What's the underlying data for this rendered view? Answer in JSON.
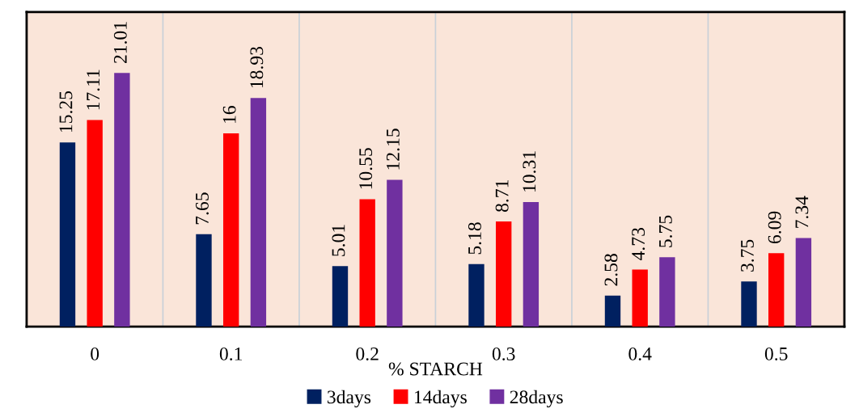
{
  "chart_data": {
    "type": "bar",
    "xlabel": "% STARCH",
    "categories": [
      "0",
      "0.1",
      "0.2",
      "0.3",
      "0.4",
      "0.5"
    ],
    "series": [
      {
        "name": "3days",
        "color": "#002060",
        "values": [
          15.25,
          7.65,
          5.01,
          5.18,
          2.58,
          3.75
        ]
      },
      {
        "name": "14days",
        "color": "#ff0000",
        "values": [
          17.11,
          16,
          10.55,
          8.71,
          4.73,
          6.09
        ]
      },
      {
        "name": "28days",
        "color": "#7030a0",
        "values": [
          21.01,
          18.93,
          12.15,
          10.31,
          5.75,
          7.34
        ]
      }
    ],
    "data_labels": true,
    "grid": "x",
    "legend": "bottom",
    "tick_labels": "x"
  }
}
